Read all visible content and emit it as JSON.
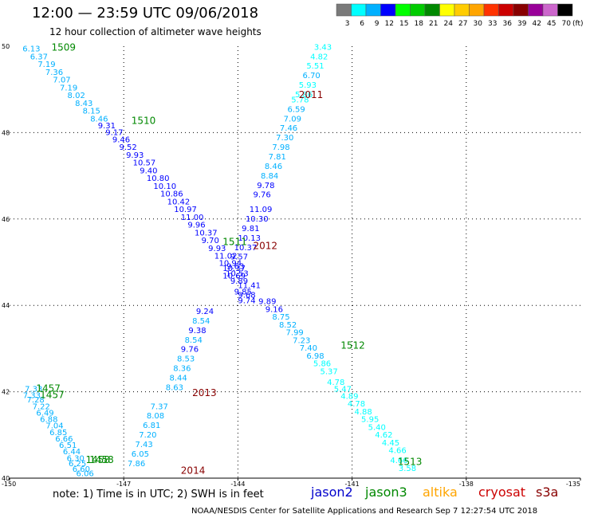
{
  "header": {
    "title": "12:00 — 23:59 UTC 09/06/2018",
    "subtitle": "12 hour collection of altimeter wave heights"
  },
  "colorbar": {
    "unit": "(ft)",
    "bins": [
      {
        "label": "3",
        "color": "#7a7a7a"
      },
      {
        "label": "6",
        "color": "#00ffff"
      },
      {
        "label": "9",
        "color": "#00b0ff"
      },
      {
        "label": "12",
        "color": "#0000ff"
      },
      {
        "label": "15",
        "color": "#00ff00"
      },
      {
        "label": "18",
        "color": "#00cc00"
      },
      {
        "label": "21",
        "color": "#008800"
      },
      {
        "label": "24",
        "color": "#ffff00"
      },
      {
        "label": "27",
        "color": "#ffcc00"
      },
      {
        "label": "30",
        "color": "#ffa500"
      },
      {
        "label": "33",
        "color": "#ff3300"
      },
      {
        "label": "36",
        "color": "#cc0000"
      },
      {
        "label": "39",
        "color": "#880000"
      },
      {
        "label": "42",
        "color": "#990099"
      },
      {
        "label": "45",
        "color": "#cc66cc"
      },
      {
        "label": "70",
        "color": "#000000"
      }
    ]
  },
  "map": {
    "lon_range": [
      -150,
      -135
    ],
    "lat_range": [
      40,
      50
    ],
    "x_ticks": [
      "-150",
      "-147",
      "-144",
      "-141",
      "-138",
      "-135"
    ],
    "y_ticks": [
      "50",
      "48",
      "46",
      "44",
      "42",
      "40"
    ]
  },
  "passes": [
    {
      "label": "1509",
      "lon": -148.9,
      "lat": 49.9,
      "color": "#008800"
    },
    {
      "label": "1510",
      "lon": -146.8,
      "lat": 48.2,
      "color": "#008800"
    },
    {
      "label": "1511",
      "lon": -144.4,
      "lat": 45.4,
      "color": "#008800"
    },
    {
      "label": "1512",
      "lon": -141.3,
      "lat": 43.0,
      "color": "#008800"
    },
    {
      "label": "1513",
      "lon": -139.8,
      "lat": 40.3,
      "color": "#008800"
    },
    {
      "label": "1457",
      "lon": -149.3,
      "lat": 42.0,
      "color": "#008800"
    },
    {
      "label": "1457",
      "lon": -149.2,
      "lat": 41.85,
      "color": "#008800"
    },
    {
      "label": "1458",
      "lon": -148.0,
      "lat": 40.35,
      "color": "#008800"
    },
    {
      "label": "1458",
      "lon": -147.9,
      "lat": 40.35,
      "color": "#008800"
    },
    {
      "label": "2011",
      "lon": -142.4,
      "lat": 48.8,
      "color": "#880000"
    },
    {
      "label": "2012",
      "lon": -143.6,
      "lat": 45.3,
      "color": "#880000"
    },
    {
      "label": "2013",
      "lon": -145.2,
      "lat": 41.9,
      "color": "#880000"
    },
    {
      "label": "2014",
      "lon": -145.5,
      "lat": 40.1,
      "color": "#880000"
    }
  ],
  "tracks": [
    {
      "name": "jason3_1509_1513",
      "color_by_value": true,
      "points": [
        {
          "v": "6.13",
          "lon": -149.66,
          "lat": 49.88
        },
        {
          "v": "6.37",
          "lon": -149.46,
          "lat": 49.7
        },
        {
          "v": "7.19",
          "lon": -149.26,
          "lat": 49.52
        },
        {
          "v": "7.36",
          "lon": -149.06,
          "lat": 49.34
        },
        {
          "v": "7.07",
          "lon": -148.86,
          "lat": 49.16
        },
        {
          "v": "7.19",
          "lon": -148.68,
          "lat": 48.98
        },
        {
          "v": "8.02",
          "lon": -148.48,
          "lat": 48.8
        },
        {
          "v": "8.43",
          "lon": -148.28,
          "lat": 48.62
        },
        {
          "v": "8.15",
          "lon": -148.08,
          "lat": 48.44
        },
        {
          "v": "8.46",
          "lon": -147.88,
          "lat": 48.26
        },
        {
          "v": "9.31",
          "lon": -147.68,
          "lat": 48.1
        },
        {
          "v": "9.17",
          "lon": -147.48,
          "lat": 47.94
        },
        {
          "v": "9.46",
          "lon": -147.3,
          "lat": 47.78
        },
        {
          "v": "9.52",
          "lon": -147.12,
          "lat": 47.6
        },
        {
          "v": "9.93",
          "lon": -146.94,
          "lat": 47.42
        },
        {
          "v": "10.57",
          "lon": -146.76,
          "lat": 47.24
        },
        {
          "v": "9.40",
          "lon": -146.58,
          "lat": 47.06
        },
        {
          "v": "10.80",
          "lon": -146.4,
          "lat": 46.88
        },
        {
          "v": "10.10",
          "lon": -146.22,
          "lat": 46.7
        },
        {
          "v": "10.86",
          "lon": -146.04,
          "lat": 46.52
        },
        {
          "v": "10.42",
          "lon": -145.86,
          "lat": 46.34
        },
        {
          "v": "10.97",
          "lon": -145.68,
          "lat": 46.16
        },
        {
          "v": "11.00",
          "lon": -145.5,
          "lat": 45.98
        },
        {
          "v": "9.96",
          "lon": -145.32,
          "lat": 45.8
        },
        {
          "v": "10.37",
          "lon": -145.14,
          "lat": 45.62
        },
        {
          "v": "9.70",
          "lon": -144.96,
          "lat": 45.44
        },
        {
          "v": "9.93",
          "lon": -144.78,
          "lat": 45.26
        },
        {
          "v": "11.02",
          "lon": -144.62,
          "lat": 45.08
        },
        {
          "v": "10.94",
          "lon": -144.5,
          "lat": 44.92
        },
        {
          "v": "10.37",
          "lon": -144.4,
          "lat": 44.8
        },
        {
          "v": "10.53",
          "lon": -144.32,
          "lat": 44.68
        },
        {
          "v": "9.89",
          "lon": -144.2,
          "lat": 44.5
        },
        {
          "v": "9.85",
          "lon": -144.1,
          "lat": 44.25
        },
        {
          "v": "9.74",
          "lon": -144.0,
          "lat": 44.05
        },
        {
          "v": "9.89",
          "lon": -143.46,
          "lat": 44.03
        },
        {
          "v": "9.16",
          "lon": -143.28,
          "lat": 43.85
        },
        {
          "v": "8.75",
          "lon": -143.1,
          "lat": 43.67
        },
        {
          "v": "8.52",
          "lon": -142.92,
          "lat": 43.49
        },
        {
          "v": "7.99",
          "lon": -142.74,
          "lat": 43.31
        },
        {
          "v": "7.23",
          "lon": -142.56,
          "lat": 43.13
        },
        {
          "v": "7.40",
          "lon": -142.38,
          "lat": 42.95
        },
        {
          "v": "6.98",
          "lon": -142.2,
          "lat": 42.77
        },
        {
          "v": "5.86",
          "lon": -142.02,
          "lat": 42.59
        },
        {
          "v": "5.37",
          "lon": -141.84,
          "lat": 42.41
        },
        {
          "v": "4.78",
          "lon": -141.66,
          "lat": 42.16
        },
        {
          "v": "5.47",
          "lon": -141.48,
          "lat": 42.0
        },
        {
          "v": "4.89",
          "lon": -141.3,
          "lat": 41.84
        },
        {
          "v": "4.78",
          "lon": -141.12,
          "lat": 41.66
        },
        {
          "v": "4.88",
          "lon": -140.94,
          "lat": 41.48
        },
        {
          "v": "5.95",
          "lon": -140.76,
          "lat": 41.3
        },
        {
          "v": "5.40",
          "lon": -140.58,
          "lat": 41.12
        },
        {
          "v": "4.62",
          "lon": -140.4,
          "lat": 40.94
        },
        {
          "v": "4.45",
          "lon": -140.22,
          "lat": 40.76
        },
        {
          "v": "4.66",
          "lon": -140.04,
          "lat": 40.58
        },
        {
          "v": "4.66",
          "lon": -140.0,
          "lat": 40.35
        },
        {
          "v": "3.58",
          "lon": -139.78,
          "lat": 40.17
        }
      ]
    },
    {
      "name": "s3a_2011_2014",
      "color_by_value": true,
      "points": [
        {
          "v": "3.43",
          "lon": -142.0,
          "lat": 49.92
        },
        {
          "v": "4.82",
          "lon": -142.1,
          "lat": 49.7
        },
        {
          "v": "5.51",
          "lon": -142.2,
          "lat": 49.48
        },
        {
          "v": "6.70",
          "lon": -142.3,
          "lat": 49.26
        },
        {
          "v": "5.93",
          "lon": -142.4,
          "lat": 49.04
        },
        {
          "v": "5.86",
          "lon": -142.5,
          "lat": 48.82
        },
        {
          "v": "5.78",
          "lon": -142.6,
          "lat": 48.7
        },
        {
          "v": "6.59",
          "lon": -142.7,
          "lat": 48.48
        },
        {
          "v": "7.09",
          "lon": -142.8,
          "lat": 48.26
        },
        {
          "v": "7.46",
          "lon": -142.9,
          "lat": 48.04
        },
        {
          "v": "7.30",
          "lon": -143.0,
          "lat": 47.82
        },
        {
          "v": "7.98",
          "lon": -143.1,
          "lat": 47.6
        },
        {
          "v": "7.81",
          "lon": -143.2,
          "lat": 47.38
        },
        {
          "v": "8.46",
          "lon": -143.3,
          "lat": 47.16
        },
        {
          "v": "8.84",
          "lon": -143.4,
          "lat": 46.94
        },
        {
          "v": "9.78",
          "lon": -143.5,
          "lat": 46.72
        },
        {
          "v": "9.76",
          "lon": -143.6,
          "lat": 46.5
        },
        {
          "v": "11.09",
          "lon": -143.7,
          "lat": 46.16
        },
        {
          "v": "10.30",
          "lon": -143.8,
          "lat": 45.94
        },
        {
          "v": "9.81",
          "lon": -143.9,
          "lat": 45.72
        },
        {
          "v": "10.13",
          "lon": -144.0,
          "lat": 45.5
        },
        {
          "v": "10.37",
          "lon": -144.1,
          "lat": 45.28
        },
        {
          "v": "9.57",
          "lon": -144.2,
          "lat": 45.06
        },
        {
          "v": "9.63",
          "lon": -144.3,
          "lat": 44.84
        },
        {
          "v": "10.69",
          "lon": -144.4,
          "lat": 44.62
        },
        {
          "v": "11.41",
          "lon": -144.0,
          "lat": 44.4
        },
        {
          "v": "9.68",
          "lon": -144.0,
          "lat": 44.18
        },
        {
          "v": "9.24",
          "lon": -145.1,
          "lat": 43.8
        },
        {
          "v": "8.54",
          "lon": -145.2,
          "lat": 43.58
        },
        {
          "v": "9.38",
          "lon": -145.3,
          "lat": 43.36
        },
        {
          "v": "8.54",
          "lon": -145.4,
          "lat": 43.14
        },
        {
          "v": "9.76",
          "lon": -145.5,
          "lat": 42.92
        },
        {
          "v": "8.53",
          "lon": -145.6,
          "lat": 42.7
        },
        {
          "v": "8.36",
          "lon": -145.7,
          "lat": 42.48
        },
        {
          "v": "8.44",
          "lon": -145.8,
          "lat": 42.26
        },
        {
          "v": "8.63",
          "lon": -145.9,
          "lat": 42.04
        },
        {
          "v": "7.37",
          "lon": -146.3,
          "lat": 41.6
        },
        {
          "v": "8.08",
          "lon": -146.4,
          "lat": 41.38
        },
        {
          "v": "6.81",
          "lon": -146.5,
          "lat": 41.16
        },
        {
          "v": "7.20",
          "lon": -146.6,
          "lat": 40.94
        },
        {
          "v": "7.43",
          "lon": -146.7,
          "lat": 40.72
        },
        {
          "v": "6.05",
          "lon": -146.8,
          "lat": 40.5
        },
        {
          "v": "7.86",
          "lon": -146.9,
          "lat": 40.28
        }
      ]
    },
    {
      "name": "jason3_1457_1458",
      "color_by_value": true,
      "points": [
        {
          "v": "7.33",
          "lon": -149.6,
          "lat": 42.0
        },
        {
          "v": "7.33",
          "lon": -149.65,
          "lat": 41.85
        },
        {
          "v": "7.28",
          "lon": -149.55,
          "lat": 41.75
        },
        {
          "v": "7.22",
          "lon": -149.4,
          "lat": 41.6
        },
        {
          "v": "6.49",
          "lon": -149.3,
          "lat": 41.45
        },
        {
          "v": "6.88",
          "lon": -149.2,
          "lat": 41.3
        },
        {
          "v": "7.04",
          "lon": -149.05,
          "lat": 41.15
        },
        {
          "v": "6.85",
          "lon": -148.95,
          "lat": 41.0
        },
        {
          "v": "6.66",
          "lon": -148.8,
          "lat": 40.85
        },
        {
          "v": "6.51",
          "lon": -148.7,
          "lat": 40.7
        },
        {
          "v": "6.44",
          "lon": -148.6,
          "lat": 40.55
        },
        {
          "v": "6.30",
          "lon": -148.5,
          "lat": 40.4
        },
        {
          "v": "6.25",
          "lon": -148.45,
          "lat": 40.28
        },
        {
          "v": "6.60",
          "lon": -148.35,
          "lat": 40.15
        },
        {
          "v": "6.06",
          "lon": -148.25,
          "lat": 40.05
        }
      ]
    }
  ],
  "footer": {
    "note": "note:  1) Time is in UTC;  2) SWH is in feet",
    "credit": "NOAA/NESDIS Center for Satellite Applications and Research   Sep  7 12:27:54 UTC 2018"
  },
  "legend": {
    "missions": [
      {
        "label": "jason2",
        "color": "#0000cc"
      },
      {
        "label": "jason3",
        "color": "#008800"
      },
      {
        "label": "altika",
        "color": "#ffa500"
      },
      {
        "label": "cryosat",
        "color": "#cc0000"
      },
      {
        "label": "s3a",
        "color": "#880000"
      }
    ]
  }
}
